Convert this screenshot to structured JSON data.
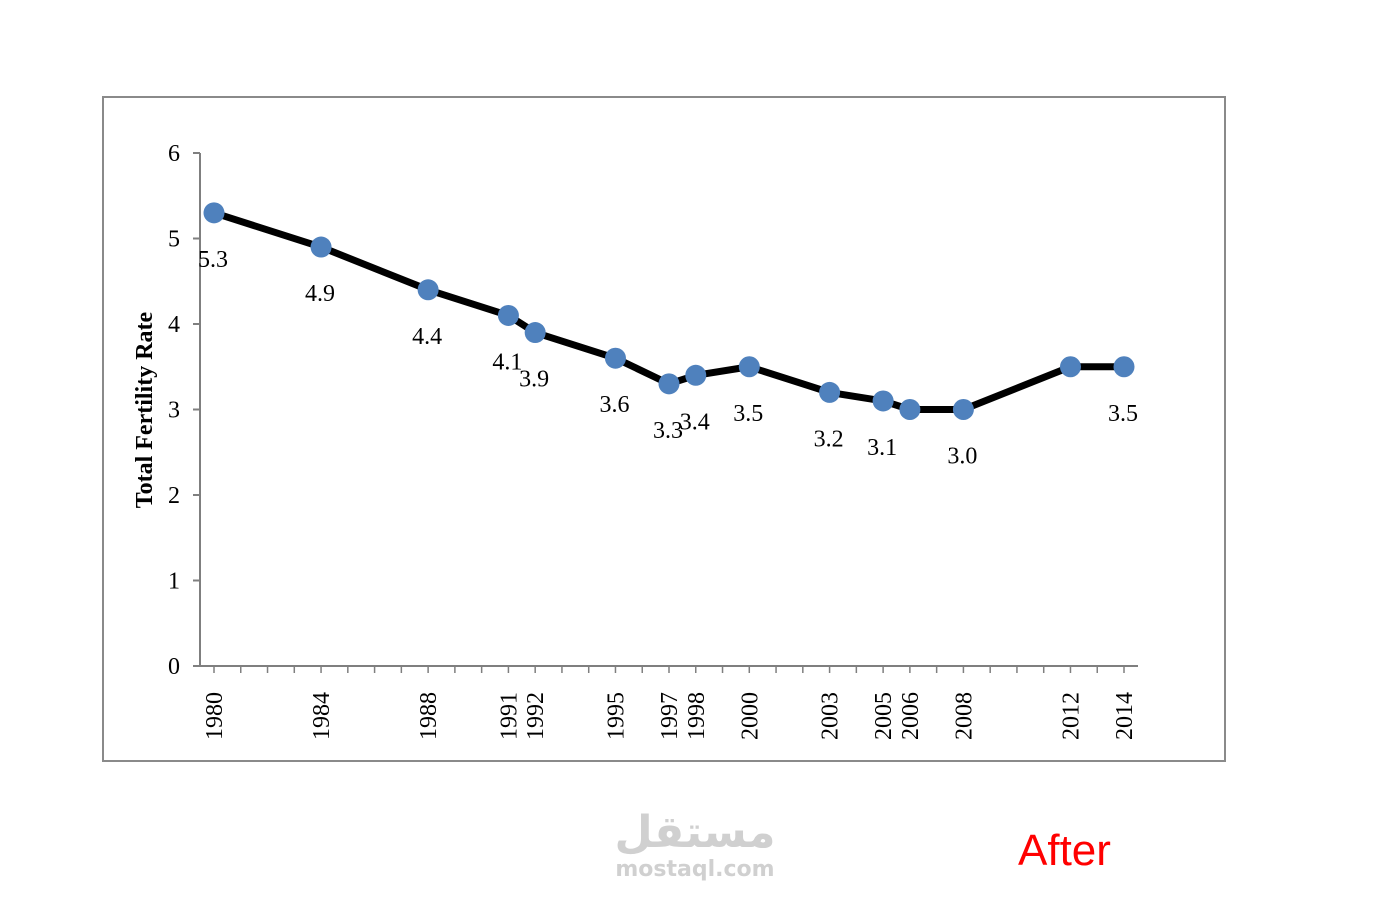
{
  "chart_data": {
    "type": "line",
    "title": "",
    "xlabel": "",
    "ylabel": "Total Fertility Rate",
    "x": [
      1980,
      1984,
      1988,
      1991,
      1992,
      1995,
      1997,
      1998,
      2000,
      2003,
      2005,
      2006,
      2008,
      2012,
      2014
    ],
    "x_tick_labels": [
      "1980",
      "1984",
      "1988",
      "1991",
      "1992",
      "1995",
      "1997",
      "1998",
      "2000",
      "2003",
      "2005",
      "2006",
      "2008",
      "2012",
      "2014"
    ],
    "xlim": [
      1980,
      2014
    ],
    "ylim": [
      0,
      6
    ],
    "y_ticks": [
      0,
      1,
      2,
      3,
      4,
      5,
      6
    ],
    "series": [
      {
        "values": [
          5.3,
          4.9,
          4.4,
          4.1,
          3.9,
          3.6,
          3.3,
          3.4,
          3.5,
          3.2,
          3.1,
          3.0,
          3.0,
          3.5,
          3.5
        ],
        "data_labels": [
          "5.3",
          "4.9",
          "4.4",
          "4.1",
          "3.9",
          "3.6",
          "3.3",
          "3.4",
          "3.5",
          "3.2",
          "3.1",
          "",
          "3.0",
          "",
          "3.5"
        ],
        "line_color": "#000000",
        "marker_color": "#4f81bd"
      }
    ],
    "grid": false,
    "legend": "none"
  },
  "watermark": {
    "arabic": "مستقل",
    "latin": "mostaql.com",
    "color": "#d0d0d0"
  },
  "caption": {
    "text": "After",
    "color": "#ff0000"
  }
}
